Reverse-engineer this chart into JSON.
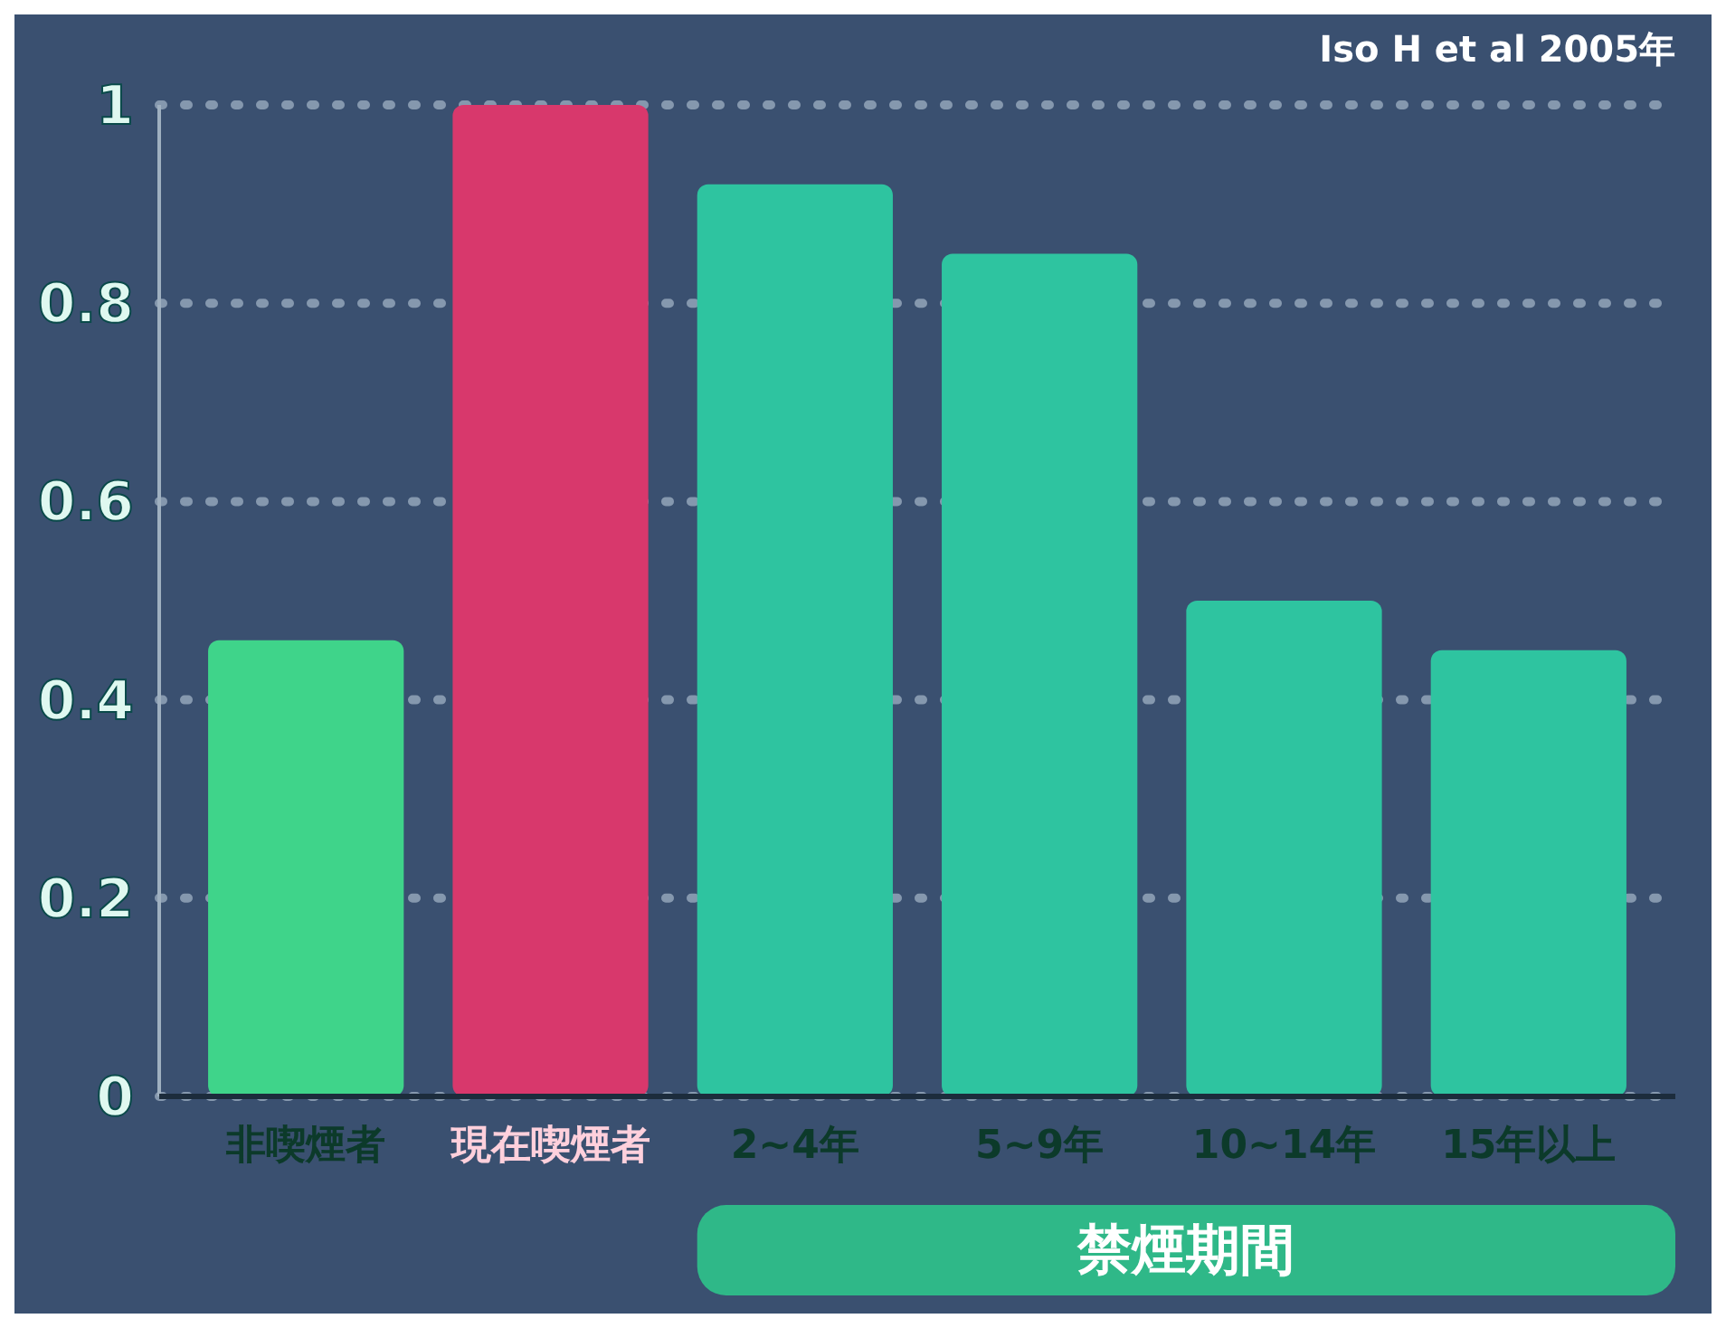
{
  "chart_data": {
    "type": "bar",
    "categories": [
      "非喫煙者",
      "現在喫煙者",
      "2~4年",
      "5~9年",
      "10~14年",
      "15年以上"
    ],
    "values": [
      0.46,
      1.0,
      0.92,
      0.85,
      0.5,
      0.45
    ],
    "colors": [
      "#3fd48a",
      "#d8386c",
      "#2ec4a0",
      "#2ec4a0",
      "#2ec4a0",
      "#2ec4a0"
    ],
    "xlabel": "禁煙期間",
    "ylim": [
      0,
      1
    ],
    "yticks": [
      0,
      0.2,
      0.4,
      0.6,
      0.8,
      1
    ],
    "grid": "y",
    "annotations": [
      "Iso H et al 2005年"
    ]
  }
}
